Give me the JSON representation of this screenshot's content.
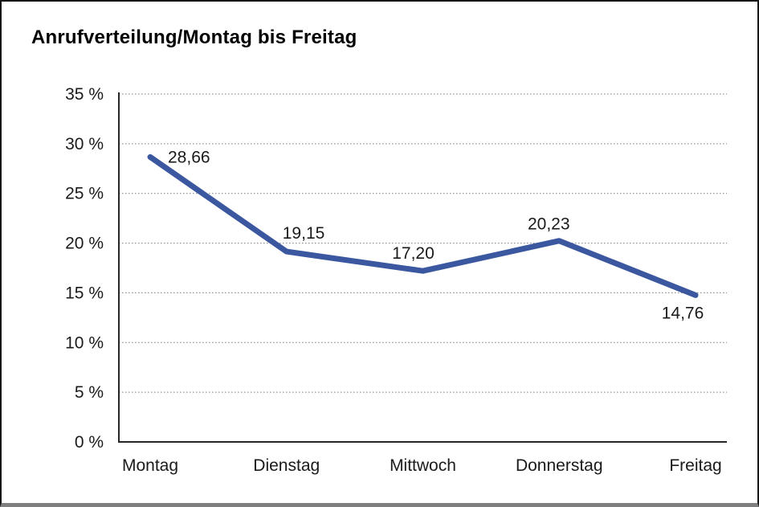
{
  "window": {
    "background": "#ffffff",
    "frame_border_color": "#161616",
    "frame_bottom_bar_color": "#7f7f7f"
  },
  "chart_data": {
    "type": "line",
    "title": "Anrufverteilung/Montag bis Freitag",
    "categories": [
      "Montag",
      "Dienstag",
      "Mittwoch",
      "Donnerstag",
      "Freitag"
    ],
    "series": [
      {
        "name": "Anrufverteilung",
        "values": [
          28.66,
          19.15,
          17.2,
          20.23,
          14.76
        ]
      }
    ],
    "point_labels": [
      "28,66",
      "19,15",
      "17,20",
      "20,23",
      "14,76"
    ],
    "xlabel": "",
    "ylabel": "",
    "ylim": [
      0,
      35
    ],
    "yticks": [
      {
        "value": 0,
        "label": "0 %"
      },
      {
        "value": 5,
        "label": "5 %"
      },
      {
        "value": 10,
        "label": "10 %"
      },
      {
        "value": 15,
        "label": "15 %"
      },
      {
        "value": 20,
        "label": "20 %"
      },
      {
        "value": 25,
        "label": "25 %"
      },
      {
        "value": 30,
        "label": "30 %"
      },
      {
        "value": 35,
        "label": "35 %"
      }
    ],
    "grid": "horizontal-dotted",
    "legend": "none",
    "line_color": "#3A57A0",
    "axis_color": "#262626",
    "grid_color": "#7a7a7a",
    "text_color": "#1a1a1a"
  }
}
